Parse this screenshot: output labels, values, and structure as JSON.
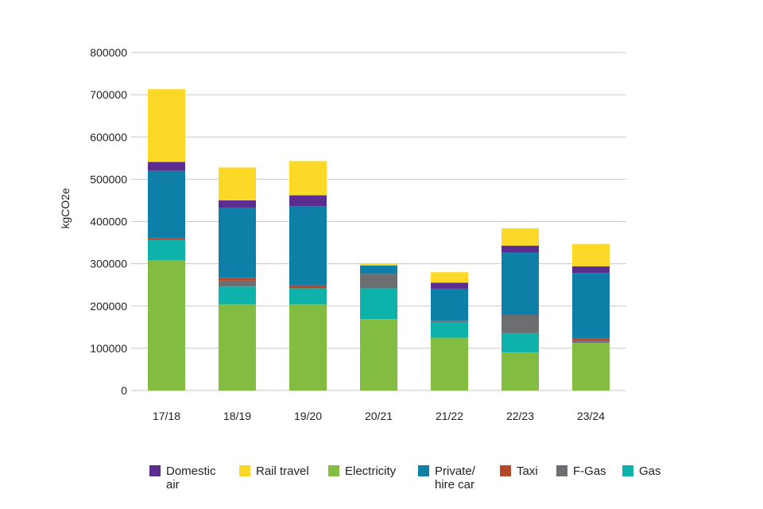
{
  "chart_data": {
    "type": "bar",
    "stacked": true,
    "ylabel": "kgCO2e",
    "xlabel": "",
    "ylim": [
      0,
      800000
    ],
    "yticks": [
      "0",
      "100000",
      "200000",
      "300000",
      "400000",
      "500000",
      "600000",
      "700000",
      "800000"
    ],
    "categories": [
      "17/18",
      "18/19",
      "19/20",
      "20/21",
      "21/22",
      "22/23",
      "23/24"
    ],
    "grid": true,
    "legend_position": "bottom",
    "series": [
      {
        "name": "Electricity",
        "color": "#82bc41",
        "values": [
          308000,
          204000,
          204000,
          169000,
          125000,
          90000,
          113000
        ]
      },
      {
        "name": "Gas",
        "color": "#0db3aa",
        "values": [
          48000,
          42000,
          38000,
          73000,
          37000,
          46000,
          0
        ]
      },
      {
        "name": "F-Gas",
        "color": "#6d6e71",
        "values": [
          0,
          14000,
          0,
          34000,
          3000,
          40000,
          5000
        ]
      },
      {
        "name": "Taxi",
        "color": "#b5472b",
        "values": [
          5000,
          7000,
          7000,
          0,
          0,
          2000,
          5000
        ]
      },
      {
        "name": "Private/\nhire car",
        "color": "#0e7fa6",
        "values": [
          159000,
          166000,
          187000,
          20000,
          76000,
          148000,
          155000
        ]
      },
      {
        "name": "Domestic\nair",
        "color": "#5b2d8e",
        "values": [
          21000,
          17000,
          26000,
          0,
          14000,
          17000,
          16000
        ]
      },
      {
        "name": "Rail travel",
        "color": "#fcd926",
        "values": [
          172000,
          78000,
          81000,
          5000,
          25000,
          41000,
          53000
        ]
      }
    ]
  },
  "legend": [
    {
      "label": "Domestic\nair",
      "color": "#5b2d8e"
    },
    {
      "label": "Rail travel",
      "color": "#fcd926"
    },
    {
      "label": "Electricity",
      "color": "#82bc41"
    },
    {
      "label": "Private/\nhire car",
      "color": "#0e7fa6"
    },
    {
      "label": "Taxi",
      "color": "#b5472b"
    },
    {
      "label": "F-Gas",
      "color": "#6d6e71"
    },
    {
      "label": "Gas",
      "color": "#0db3aa"
    }
  ]
}
